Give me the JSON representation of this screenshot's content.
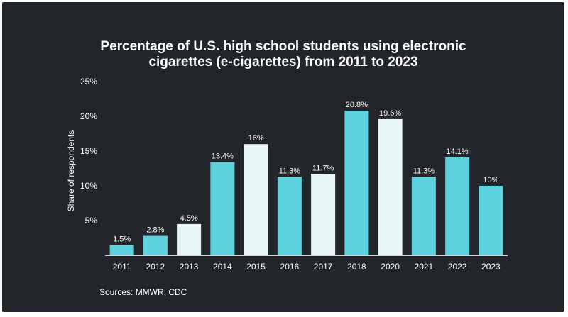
{
  "title_lines": [
    "Percentage of U.S. high school students using electronic",
    "cigarettes (e-cigarettes) from 2011 to 2023"
  ],
  "source": "Sources: MMWR; CDC",
  "colors": {
    "background": "#22262b",
    "teal": "#5dd1dc",
    "pale": "#e9f6f7",
    "text": "#ffffff"
  },
  "chart_data": {
    "type": "bar",
    "title": "Percentage of U.S. high school students using electronic cigarettes (e-cigarettes) from 2011 to 2023",
    "xlabel": "",
    "ylabel": "Share of respondents",
    "ylim": [
      0,
      25
    ],
    "yticks": [
      "5%",
      "10%",
      "15%",
      "20%",
      "25%"
    ],
    "ytick_values": [
      5,
      10,
      15,
      20,
      25
    ],
    "grid": false,
    "categories": [
      "2011",
      "2012",
      "2013",
      "2014",
      "2015",
      "2016",
      "2017",
      "2018",
      "2020",
      "2021",
      "2022",
      "2023"
    ],
    "values": [
      1.5,
      2.8,
      4.5,
      13.4,
      16,
      11.3,
      11.7,
      20.8,
      19.6,
      11.3,
      14.1,
      10
    ],
    "value_labels": [
      "1.5%",
      "2.8%",
      "4.5%",
      "13.4%",
      "16%",
      "11.3%",
      "11.7%",
      "20.8%",
      "19.6%",
      "11.3%",
      "14.1%",
      "10%"
    ],
    "bar_colors": [
      "#5dd1dc",
      "#5dd1dc",
      "#e9f6f7",
      "#5dd1dc",
      "#e9f6f7",
      "#5dd1dc",
      "#e9f6f7",
      "#5dd1dc",
      "#e9f6f7",
      "#5dd1dc",
      "#5dd1dc",
      "#5dd1dc"
    ]
  }
}
